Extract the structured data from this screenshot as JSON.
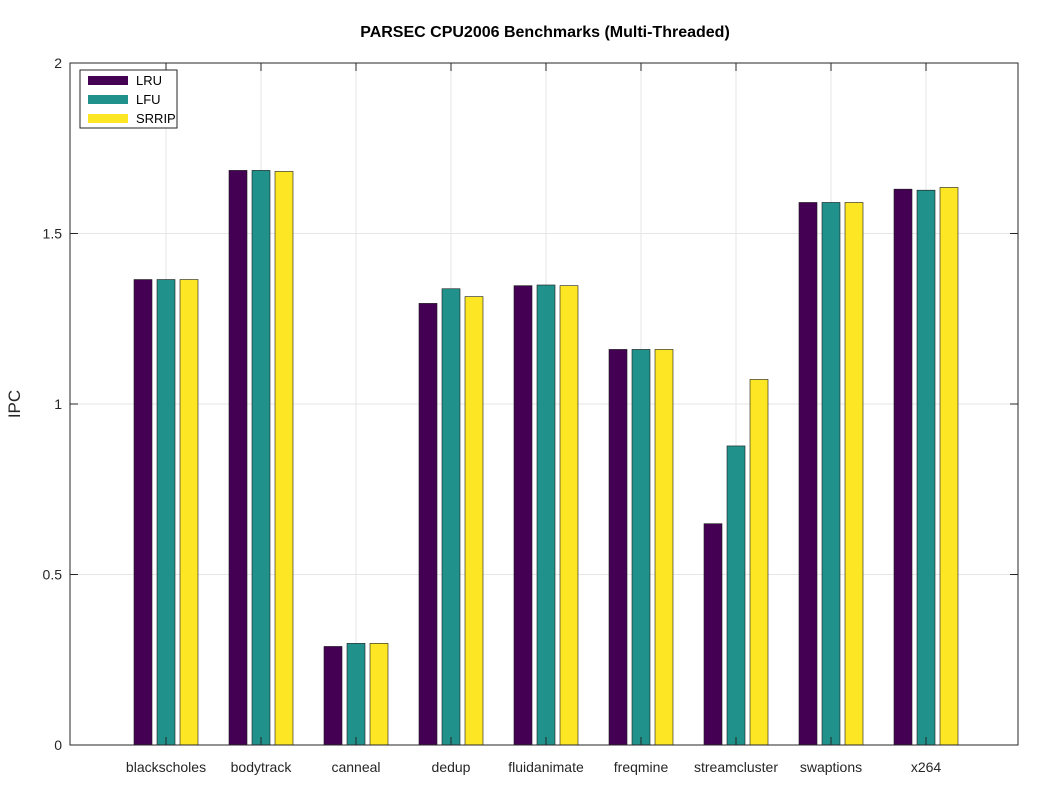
{
  "chart_data": {
    "type": "bar",
    "title": "PARSEC CPU2006 Benchmarks (Multi-Threaded)",
    "xlabel": "",
    "ylabel": "IPC",
    "ylim": [
      0,
      2
    ],
    "yticks": [
      0,
      0.5,
      1,
      1.5,
      2
    ],
    "ytick_labels": [
      "0",
      "0.5",
      "1",
      "1.5",
      "2"
    ],
    "grid": true,
    "legend_position": "top-left",
    "categories": [
      "blackscholes",
      "bodytrack",
      "canneal",
      "dedup",
      "fluidanimate",
      "freqmine",
      "streamcluster",
      "swaptions",
      "x264"
    ],
    "series": [
      {
        "name": "LRU",
        "color": "#440154",
        "values": [
          1.365,
          1.685,
          0.289,
          1.295,
          1.347,
          1.16,
          0.649,
          1.591,
          1.63
        ]
      },
      {
        "name": "LFU",
        "color": "#21918c",
        "values": [
          1.365,
          1.685,
          0.298,
          1.338,
          1.349,
          1.16,
          0.877,
          1.591,
          1.627
        ]
      },
      {
        "name": "SRRIP",
        "color": "#fde725",
        "values": [
          1.365,
          1.682,
          0.298,
          1.315,
          1.347,
          1.16,
          1.072,
          1.591,
          1.635
        ]
      }
    ]
  }
}
